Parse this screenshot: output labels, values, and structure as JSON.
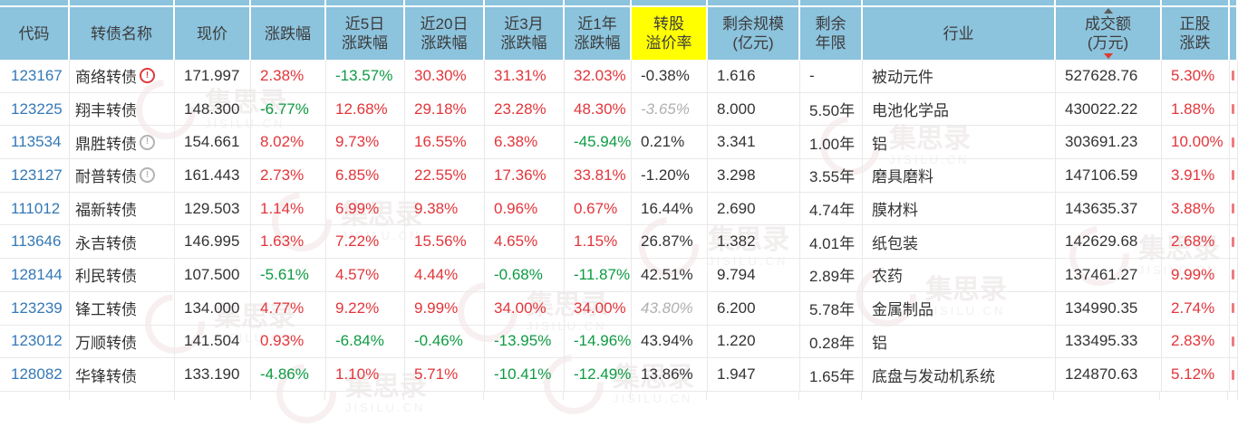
{
  "colors": {
    "header_bg": "#8cc3dd",
    "premium_highlight": "#ffff00",
    "positive_red": "#e2353a",
    "negative_green": "#0c9b42",
    "code_link_blue": "#3478b6",
    "text_dark": "#333333",
    "text_muted_italic": "#b0b0b0",
    "sort_desc_arrow": "#e0392f"
  },
  "watermark": {
    "cn": "集思录",
    "en": "JISILU.CN"
  },
  "table": {
    "sorted_column": "turnover",
    "sort_direction": "desc",
    "columns": [
      {
        "key": "code",
        "lines": [
          "代码"
        ]
      },
      {
        "key": "name",
        "lines": [
          "转债名称"
        ]
      },
      {
        "key": "price",
        "lines": [
          "现价"
        ]
      },
      {
        "key": "chg",
        "lines": [
          "涨跌幅"
        ]
      },
      {
        "key": "chg5",
        "lines": [
          "近5日",
          "涨跌幅"
        ]
      },
      {
        "key": "chg20",
        "lines": [
          "近20日",
          "涨跌幅"
        ]
      },
      {
        "key": "chg3m",
        "lines": [
          "近3月",
          "涨跌幅"
        ]
      },
      {
        "key": "chg1y",
        "lines": [
          "近1年",
          "涨跌幅"
        ]
      },
      {
        "key": "premium",
        "lines": [
          "转股",
          "溢价率"
        ],
        "highlight": true
      },
      {
        "key": "scale",
        "lines": [
          "剩余规模",
          "(亿元)"
        ]
      },
      {
        "key": "years",
        "lines": [
          "剩余",
          "年限"
        ]
      },
      {
        "key": "industry",
        "lines": [
          "行业"
        ]
      },
      {
        "key": "turnover",
        "lines": [
          "成交额",
          "(万元)"
        ],
        "sort": "desc"
      },
      {
        "key": "stock_chg",
        "lines": [
          "正股",
          "涨跌"
        ]
      },
      {
        "key": "extra",
        "lines": []
      }
    ],
    "rows": [
      {
        "code": "123167",
        "name": "商络转债",
        "warning": "red",
        "price": "171.997",
        "chg": {
          "t": "2.38%",
          "c": "red"
        },
        "chg5": {
          "t": "-13.57%",
          "c": "green"
        },
        "chg20": {
          "t": "30.30%",
          "c": "red"
        },
        "chg3m": {
          "t": "31.31%",
          "c": "red"
        },
        "chg1y": {
          "t": "32.03%",
          "c": "red"
        },
        "premium": {
          "t": "-0.38%",
          "c": "dark"
        },
        "scale": "1.616",
        "years": "-",
        "industry": "被动元件",
        "turnover": "527628.76",
        "stock_chg": {
          "t": "5.30%",
          "c": "red"
        }
      },
      {
        "code": "123225",
        "name": "翔丰转债",
        "warning": null,
        "price": "148.300",
        "chg": {
          "t": "-6.77%",
          "c": "green"
        },
        "chg5": {
          "t": "12.68%",
          "c": "red"
        },
        "chg20": {
          "t": "29.18%",
          "c": "red"
        },
        "chg3m": {
          "t": "23.28%",
          "c": "red"
        },
        "chg1y": {
          "t": "48.30%",
          "c": "red"
        },
        "premium": {
          "t": "-3.65%",
          "c": "muted"
        },
        "scale": "8.000",
        "years": "5.50年",
        "industry": "电池化学品",
        "turnover": "430022.22",
        "stock_chg": {
          "t": "1.88%",
          "c": "red"
        }
      },
      {
        "code": "113534",
        "name": "鼎胜转债",
        "warning": "gray",
        "price": "154.661",
        "chg": {
          "t": "8.02%",
          "c": "red"
        },
        "chg5": {
          "t": "9.73%",
          "c": "red"
        },
        "chg20": {
          "t": "16.55%",
          "c": "red"
        },
        "chg3m": {
          "t": "6.38%",
          "c": "red"
        },
        "chg1y": {
          "t": "-45.94%",
          "c": "green"
        },
        "premium": {
          "t": "0.21%",
          "c": "dark"
        },
        "scale": "3.341",
        "years": "1.00年",
        "industry": "铝",
        "turnover": "303691.23",
        "stock_chg": {
          "t": "10.00%",
          "c": "red"
        }
      },
      {
        "code": "123127",
        "name": "耐普转债",
        "warning": "gray",
        "price": "161.443",
        "chg": {
          "t": "2.73%",
          "c": "red"
        },
        "chg5": {
          "t": "6.85%",
          "c": "red"
        },
        "chg20": {
          "t": "22.55%",
          "c": "red"
        },
        "chg3m": {
          "t": "17.36%",
          "c": "red"
        },
        "chg1y": {
          "t": "33.81%",
          "c": "red"
        },
        "premium": {
          "t": "-1.20%",
          "c": "dark"
        },
        "scale": "3.298",
        "years": "3.55年",
        "industry": "磨具磨料",
        "turnover": "147106.59",
        "stock_chg": {
          "t": "3.91%",
          "c": "red"
        }
      },
      {
        "code": "111012",
        "name": "福新转债",
        "warning": null,
        "price": "129.503",
        "chg": {
          "t": "1.14%",
          "c": "red"
        },
        "chg5": {
          "t": "6.99%",
          "c": "red"
        },
        "chg20": {
          "t": "9.38%",
          "c": "red"
        },
        "chg3m": {
          "t": "0.96%",
          "c": "red"
        },
        "chg1y": {
          "t": "0.67%",
          "c": "red"
        },
        "premium": {
          "t": "16.44%",
          "c": "dark"
        },
        "scale": "2.690",
        "years": "4.74年",
        "industry": "膜材料",
        "turnover": "143635.37",
        "stock_chg": {
          "t": "3.88%",
          "c": "red"
        }
      },
      {
        "code": "113646",
        "name": "永吉转债",
        "warning": null,
        "price": "146.995",
        "chg": {
          "t": "1.63%",
          "c": "red"
        },
        "chg5": {
          "t": "7.22%",
          "c": "red"
        },
        "chg20": {
          "t": "15.56%",
          "c": "red"
        },
        "chg3m": {
          "t": "4.65%",
          "c": "red"
        },
        "chg1y": {
          "t": "1.15%",
          "c": "red"
        },
        "premium": {
          "t": "26.87%",
          "c": "dark"
        },
        "scale": "1.382",
        "years": "4.01年",
        "industry": "纸包装",
        "turnover": "142629.68",
        "stock_chg": {
          "t": "2.68%",
          "c": "red"
        }
      },
      {
        "code": "128144",
        "name": "利民转债",
        "warning": null,
        "price": "107.500",
        "chg": {
          "t": "-5.61%",
          "c": "green"
        },
        "chg5": {
          "t": "4.57%",
          "c": "red"
        },
        "chg20": {
          "t": "4.44%",
          "c": "red"
        },
        "chg3m": {
          "t": "-0.68%",
          "c": "green"
        },
        "chg1y": {
          "t": "-11.87%",
          "c": "green"
        },
        "premium": {
          "t": "42.51%",
          "c": "dark"
        },
        "scale": "9.794",
        "years": "2.89年",
        "industry": "农药",
        "turnover": "137461.27",
        "stock_chg": {
          "t": "9.99%",
          "c": "red"
        }
      },
      {
        "code": "123239",
        "name": "锋工转债",
        "warning": null,
        "price": "134.000",
        "chg": {
          "t": "4.77%",
          "c": "red"
        },
        "chg5": {
          "t": "9.22%",
          "c": "red"
        },
        "chg20": {
          "t": "9.99%",
          "c": "red"
        },
        "chg3m": {
          "t": "34.00%",
          "c": "red"
        },
        "chg1y": {
          "t": "34.00%",
          "c": "red"
        },
        "premium": {
          "t": "43.80%",
          "c": "muted"
        },
        "scale": "6.200",
        "years": "5.78年",
        "industry": "金属制品",
        "turnover": "134990.35",
        "stock_chg": {
          "t": "2.74%",
          "c": "red"
        }
      },
      {
        "code": "123012",
        "name": "万顺转债",
        "warning": null,
        "price": "141.504",
        "chg": {
          "t": "0.93%",
          "c": "red"
        },
        "chg5": {
          "t": "-6.84%",
          "c": "green"
        },
        "chg20": {
          "t": "-0.46%",
          "c": "green"
        },
        "chg3m": {
          "t": "-13.95%",
          "c": "green"
        },
        "chg1y": {
          "t": "-14.96%",
          "c": "green"
        },
        "premium": {
          "t": "43.94%",
          "c": "dark"
        },
        "scale": "1.220",
        "years": "0.28年",
        "industry": "铝",
        "turnover": "133495.33",
        "stock_chg": {
          "t": "2.83%",
          "c": "red"
        }
      },
      {
        "code": "128082",
        "name": "华锋转债",
        "warning": null,
        "price": "133.190",
        "chg": {
          "t": "-4.86%",
          "c": "green"
        },
        "chg5": {
          "t": "1.10%",
          "c": "red"
        },
        "chg20": {
          "t": "5.71%",
          "c": "red"
        },
        "chg3m": {
          "t": "-10.41%",
          "c": "green"
        },
        "chg1y": {
          "t": "-12.49%",
          "c": "green"
        },
        "premium": {
          "t": "13.86%",
          "c": "dark"
        },
        "scale": "1.947",
        "years": "1.65年",
        "industry": "底盘与发动机系统",
        "turnover": "124870.63",
        "stock_chg": {
          "t": "5.12%",
          "c": "red"
        }
      }
    ]
  }
}
